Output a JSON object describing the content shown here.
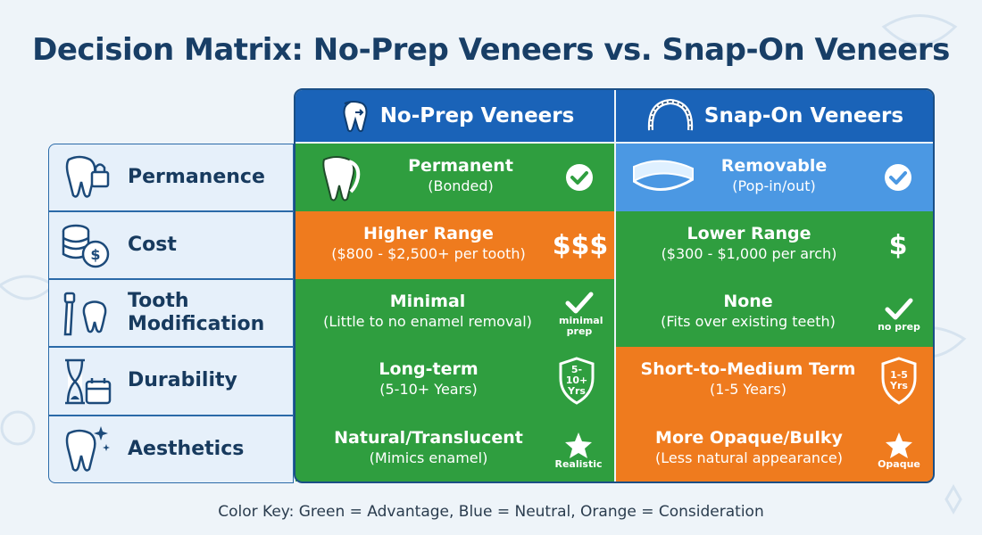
{
  "title": "Decision Matrix: No-Prep Veneers vs. Snap-On Veneers",
  "columns": [
    {
      "label": "No-Prep Veneers",
      "icon": "tooth-icon"
    },
    {
      "label": "Snap-On Veneers",
      "icon": "dental-arch-icon"
    }
  ],
  "rows": [
    {
      "label": "Permanence",
      "icon": "tooth-lock-icon"
    },
    {
      "label": "Cost",
      "icon": "coins-icon"
    },
    {
      "label": "Tooth Modification",
      "icon": "dental-drill-icon"
    },
    {
      "label": "Durability",
      "icon": "hourglass-calendar-icon"
    },
    {
      "label": "Aesthetics",
      "icon": "sparkle-tooth-icon"
    }
  ],
  "cells": [
    [
      {
        "main": "Permanent",
        "sub": "(Bonded)",
        "color": "#2f9e3f",
        "mark": "check-circle-icon",
        "mark_caption": ""
      },
      {
        "main": "Removable",
        "sub": "(Pop-in/out)",
        "color": "#4b98e3",
        "mark": "check-circle-icon",
        "mark_caption": ""
      }
    ],
    [
      {
        "main": "Higher Range",
        "sub": "($800 - $2,500+ per tooth)",
        "color": "#ef7b1e",
        "mark": "dollar-signs",
        "mark_caption": "$$$"
      },
      {
        "main": "Lower Range",
        "sub": "($300 - $1,000 per arch)",
        "color": "#2f9e3f",
        "mark": "dollar-signs",
        "mark_caption": "$"
      }
    ],
    [
      {
        "main": "Minimal",
        "sub": "(Little to no enamel removal)",
        "color": "#2f9e3f",
        "mark": "check-icon",
        "mark_caption": "minimal prep"
      },
      {
        "main": "None",
        "sub": "(Fits over existing teeth)",
        "color": "#2f9e3f",
        "mark": "check-icon",
        "mark_caption": "no prep"
      }
    ],
    [
      {
        "main": "Long-term",
        "sub": "(5-10+ Years)",
        "color": "#2f9e3f",
        "mark": "shield-icon",
        "mark_caption": "5-10+ Yrs"
      },
      {
        "main": "Short-to-Medium Term",
        "sub": "(1-5 Years)",
        "color": "#ef7b1e",
        "mark": "shield-icon",
        "mark_caption": "1-5 Yrs"
      }
    ],
    [
      {
        "main": "Natural/Translucent",
        "sub": "(Mimics enamel)",
        "color": "#2f9e3f",
        "mark": "star-icon",
        "mark_caption": "Realistic"
      },
      {
        "main": "More Opaque/Bulky",
        "sub": "(Less natural appearance)",
        "color": "#ef7b1e",
        "mark": "star-icon",
        "mark_caption": "Opaque"
      }
    ]
  ],
  "color_key": "Color Key: Green = Advantage, Blue = Neutral, Orange = Consideration"
}
